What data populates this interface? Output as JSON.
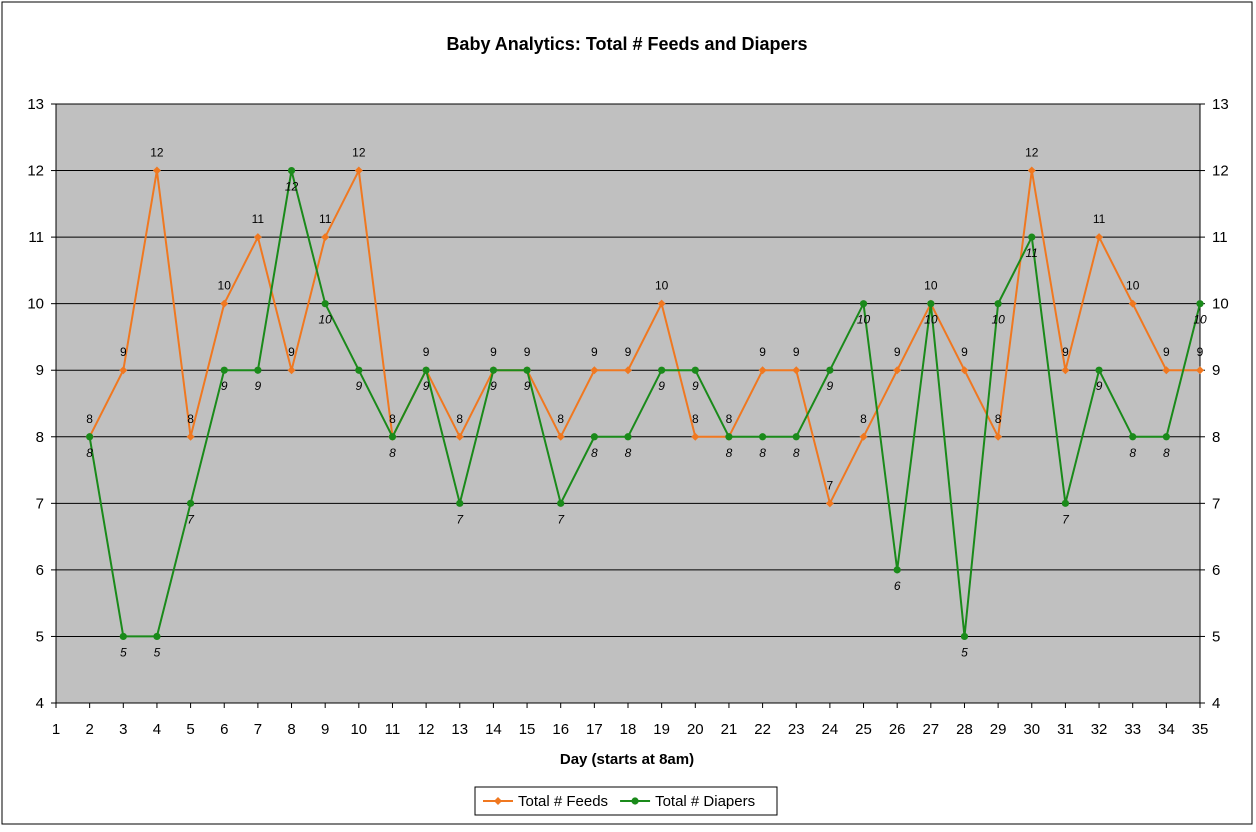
{
  "chart_data": {
    "type": "line",
    "title": "Baby Analytics: Total # Feeds and Diapers",
    "xlabel": "Day (starts at 8am)",
    "ylabel": "",
    "ylim": [
      4,
      13
    ],
    "xlim": [
      1,
      35
    ],
    "y_ticks": [
      4,
      5,
      6,
      7,
      8,
      9,
      10,
      11,
      12,
      13
    ],
    "x_ticks": [
      1,
      2,
      3,
      4,
      5,
      6,
      7,
      8,
      9,
      10,
      11,
      12,
      13,
      14,
      15,
      16,
      17,
      18,
      19,
      20,
      21,
      22,
      23,
      24,
      25,
      26,
      27,
      28,
      29,
      30,
      31,
      32,
      33,
      34,
      35
    ],
    "x": [
      2,
      3,
      4,
      5,
      6,
      7,
      8,
      9,
      10,
      11,
      12,
      13,
      14,
      15,
      16,
      17,
      18,
      19,
      20,
      21,
      22,
      23,
      24,
      25,
      26,
      27,
      28,
      29,
      30,
      31,
      32,
      33,
      34,
      35
    ],
    "grid": true,
    "plot_background": "#c0c0c0",
    "legend_position": "bottom",
    "secondary_y_axis": true,
    "series": [
      {
        "name": "Total # Feeds",
        "color": "#f07820",
        "marker": "diamond",
        "values": [
          8,
          9,
          12,
          8,
          10,
          11,
          9,
          11,
          12,
          8,
          9,
          8,
          9,
          9,
          8,
          9,
          9,
          10,
          8,
          8,
          9,
          9,
          7,
          8,
          9,
          10,
          9,
          8,
          12,
          9,
          11,
          10,
          9,
          9
        ]
      },
      {
        "name": "Total # Diapers",
        "color": "#1a8a1a",
        "marker": "circle",
        "values": [
          8,
          5,
          5,
          7,
          9,
          9,
          12,
          10,
          9,
          8,
          9,
          7,
          9,
          9,
          7,
          8,
          8,
          9,
          9,
          8,
          8,
          8,
          9,
          10,
          6,
          10,
          5,
          10,
          11,
          7,
          9,
          8,
          8,
          10
        ]
      }
    ]
  }
}
